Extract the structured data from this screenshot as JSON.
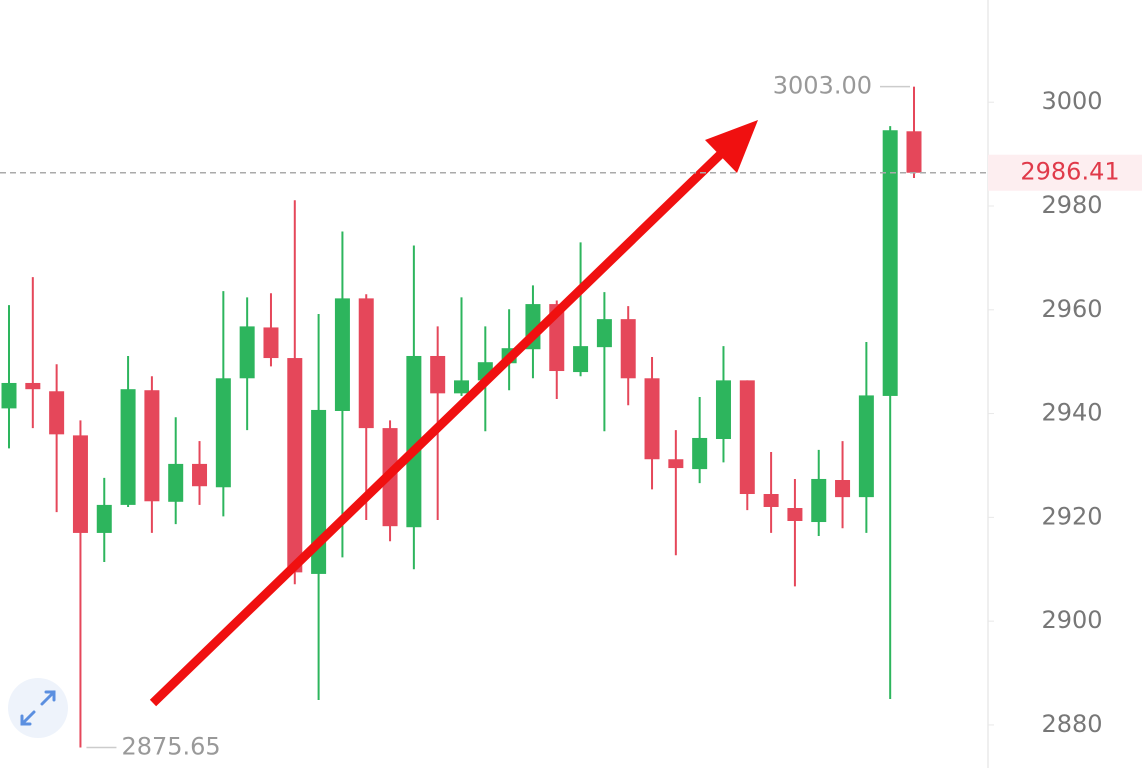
{
  "chart_data": {
    "type": "candlestick",
    "open": [
      2941.0,
      2945.9,
      2944.3,
      2935.8,
      2917.0,
      2922.4,
      2944.5,
      2923.0,
      2930.3,
      2925.8,
      2946.8,
      2956.6,
      2950.7,
      2909.1,
      2940.5,
      2962.2,
      2937.2,
      2918.1,
      2951.1,
      2943.9,
      2946.4,
      2949.7,
      2952.4,
      2961.1,
      2948.0,
      2952.8,
      2958.2,
      2946.8,
      2931.2,
      2929.3,
      2935.1,
      2946.4,
      2924.5,
      2921.8,
      2919.1,
      2927.2,
      2923.9,
      2943.4,
      2994.4
    ],
    "high": [
      2960.9,
      2966.3,
      2949.5,
      2938.7,
      2927.6,
      2951.1,
      2947.2,
      2939.3,
      2934.7,
      2963.6,
      2962.4,
      2963.2,
      2981.1,
      2959.2,
      2975.1,
      2963.0,
      2938.7,
      2972.4,
      2956.8,
      2962.4,
      2956.8,
      2960.1,
      2964.7,
      2961.8,
      2973.0,
      2963.4,
      2960.7,
      2950.9,
      2936.8,
      2943.2,
      2953.0,
      2946.4,
      2932.6,
      2927.4,
      2933.0,
      2934.7,
      2953.8,
      2995.4,
      3003.0
    ],
    "low": [
      2933.3,
      2937.2,
      2921.0,
      2875.65,
      2911.4,
      2922.0,
      2917.0,
      2918.7,
      2922.4,
      2920.2,
      2936.8,
      2949.1,
      2907.1,
      2884.8,
      2912.3,
      2919.5,
      2915.4,
      2910.0,
      2919.5,
      2943.4,
      2936.6,
      2944.5,
      2946.8,
      2942.8,
      2947.2,
      2936.6,
      2941.6,
      2925.4,
      2912.7,
      2926.6,
      2930.6,
      2921.4,
      2917.0,
      2906.7,
      2916.4,
      2917.9,
      2917.0,
      2885.0,
      2985.4
    ],
    "close": [
      2945.9,
      2944.7,
      2936.0,
      2917.0,
      2922.4,
      2944.7,
      2923.1,
      2930.3,
      2926.0,
      2946.8,
      2956.8,
      2950.7,
      2909.4,
      2940.7,
      2962.2,
      2937.2,
      2918.3,
      2951.1,
      2943.9,
      2946.4,
      2949.9,
      2952.6,
      2961.1,
      2948.2,
      2953.0,
      2958.2,
      2946.8,
      2931.2,
      2929.5,
      2935.3,
      2946.4,
      2924.5,
      2922.0,
      2919.3,
      2927.4,
      2923.9,
      2943.5,
      2994.6,
      2986.41
    ],
    "up_color": "#2db55d",
    "down_color": "#e5475a",
    "ylim": [
      2871.7,
      3019.7
    ],
    "yticks": [
      2880,
      2900,
      2920,
      2940,
      2960,
      2980,
      3000
    ],
    "grid": false,
    "last_price": 2986.41,
    "annotations": [
      {
        "value": 3003,
        "label": "3003.00"
      },
      {
        "value": 2875.65,
        "label": "2875.65"
      }
    ]
  }
}
